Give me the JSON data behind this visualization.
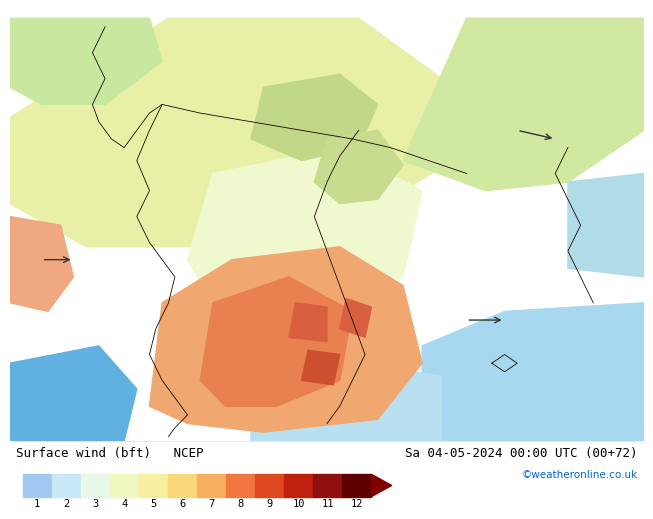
{
  "title_left": "Surface wind (bft)   NCEP",
  "title_right": "Sa 04-05-2024 00:00 UTC (00+72)",
  "credit": "©weatheronline.co.uk",
  "colorbar_values": [
    1,
    2,
    3,
    4,
    5,
    6,
    7,
    8,
    9,
    10,
    11,
    12
  ],
  "colorbar_colors": [
    "#a0c8f0",
    "#c8e8f8",
    "#e8f8e8",
    "#f0f8c0",
    "#f8f0a0",
    "#f8d878",
    "#f8b060",
    "#f07840",
    "#e04820",
    "#c02010",
    "#901010",
    "#600000"
  ],
  "map_bg": "#7de8f0",
  "fig_bg": "#ffffff",
  "bottom_bg": "#c8f0f8",
  "coast_color": "#1a0a00"
}
